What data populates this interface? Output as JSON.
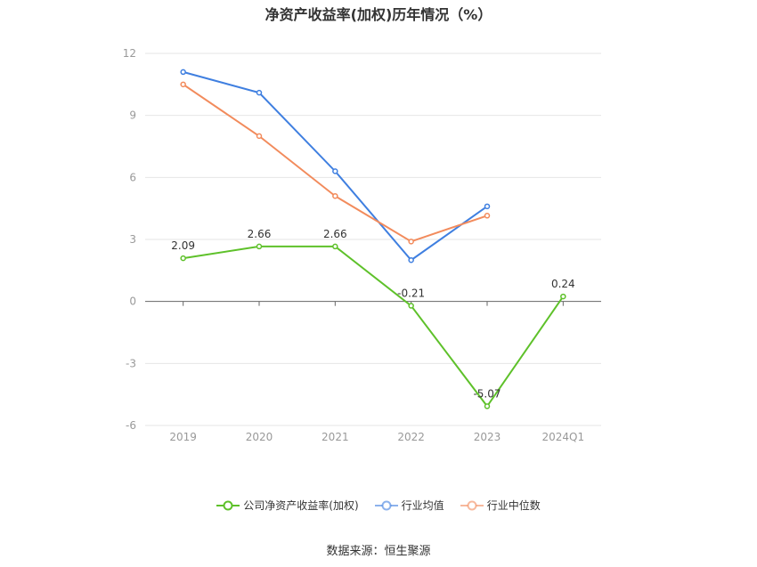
{
  "chart_data": {
    "type": "line",
    "title": "净资产收益率(加权)历年情况（%）",
    "categories": [
      "2019",
      "2020",
      "2021",
      "2022",
      "2023",
      "2024Q1"
    ],
    "ylim": [
      -6,
      12
    ],
    "yticks": [
      -6,
      -3,
      0,
      3,
      6,
      9,
      12
    ],
    "grid": true,
    "legend_position": "bottom",
    "series": [
      {
        "name": "公司净资产收益率(加权)",
        "color": "#5ec12a",
        "values": [
          2.09,
          2.66,
          2.66,
          -0.21,
          -5.07,
          0.24
        ],
        "labels": [
          "2.09",
          "2.66",
          "2.66",
          "-0.21",
          "-5.07",
          "0.24"
        ]
      },
      {
        "name": "行业均值",
        "color": "#3f7fe0",
        "values": [
          11.1,
          10.1,
          6.3,
          2.0,
          4.6,
          null
        ]
      },
      {
        "name": "行业中位数",
        "color": "#f28b5c",
        "values": [
          10.5,
          8.0,
          5.1,
          2.9,
          4.15,
          null
        ]
      }
    ]
  },
  "source": "数据来源：恒生聚源"
}
